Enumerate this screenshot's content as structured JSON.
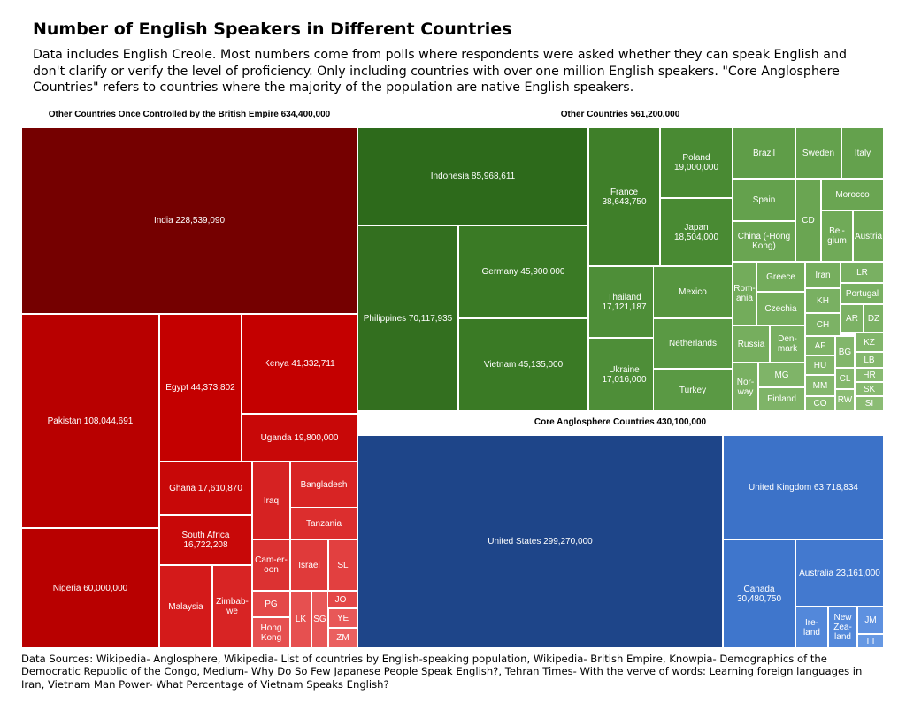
{
  "chart_data": {
    "type": "treemap",
    "title": "Number of English Speakers in Different Countries",
    "subtitle": "Data includes English Creole. Most numbers come from polls where respondents were asked whether they can speak English and don't clarify or verify the level of proficiency. Only including countries with over one million English speakers. \"Core Anglosphere Countries\" refers to countries where the majority of the population are native English speakers.",
    "sources": "Data Sources: Wikipedia- Anglosphere, Wikipedia- List of countries by English-speaking population, Wikipedia- British Empire, Knowpia- Demographics of the Democratic Republic of the Congo, Medium- Why Do So Few Japanese People Speak English?, Tehran Times- With the verve of words: Learning foreign languages in Iran, Vietnam Man Power- What Percentage of Vietnam Speaks English?",
    "groups": [
      {
        "name": "Other Countries Once Controlled by the British Empire 634,400,000",
        "items": [
          {
            "label": "India 228,539,090",
            "color": "#750000"
          },
          {
            "label": "Pakistan 108,044,691",
            "color": "#b80000"
          },
          {
            "label": "Nigeria 60,000,000",
            "color": "#b80000"
          },
          {
            "label": "Egypt 44,373,802",
            "color": "#c40000"
          },
          {
            "label": "Kenya 41,332,711",
            "color": "#c40000"
          },
          {
            "label": "Uganda 19,800,000",
            "color": "#c80808"
          },
          {
            "label": "Ghana 17,610,870",
            "color": "#c80808"
          },
          {
            "label": "South Africa\n16,722,208",
            "color": "#c80808"
          },
          {
            "label": "Malaysia",
            "color": "#d41a1a"
          },
          {
            "label": "Zimbab-\nwe",
            "color": "#d82424"
          },
          {
            "label": "Iraq",
            "color": "#d62222"
          },
          {
            "label": "Bangladesh",
            "color": "#d82424"
          },
          {
            "label": "Tanzania",
            "color": "#dc2e2e"
          },
          {
            "label": "Cameroon",
            "display": "Cam-er-\noon",
            "color": "#dc3232"
          },
          {
            "label": "Israel",
            "color": "#e03a3a"
          },
          {
            "label": "SL",
            "color": "#e24040"
          },
          {
            "label": "PG",
            "color": "#e44848"
          },
          {
            "label": "JO",
            "color": "#e44848"
          },
          {
            "label": "LK",
            "color": "#e65050"
          },
          {
            "label": "SG",
            "color": "#e85858"
          },
          {
            "label": "YE",
            "color": "#e85858"
          },
          {
            "label": "Hong Kong",
            "display": "Hong\nKong",
            "color": "#e65050"
          },
          {
            "label": "ZM",
            "color": "#ea6060"
          }
        ]
      },
      {
        "name": "Other Countries 561,200,000",
        "items": [
          {
            "label": "Indonesia 85,968,611",
            "color": "#2d6a1b"
          },
          {
            "label": "Philippines 70,117,935",
            "color": "#336f1f"
          },
          {
            "label": "Germany 45,900,000",
            "color": "#3a7a25"
          },
          {
            "label": "Vietnam 45,135,000",
            "color": "#3a7a25"
          },
          {
            "label": "France\n38,643,750",
            "color": "#3f7f29"
          },
          {
            "label": "Poland\n19,000,000",
            "color": "#498a33"
          },
          {
            "label": "Japan\n18,504,000",
            "color": "#498a33"
          },
          {
            "label": "Thailand\n17,121,187",
            "color": "#4e8e38"
          },
          {
            "label": "Ukraine\n17,016,000",
            "color": "#4e8e38"
          },
          {
            "label": "Mexico",
            "color": "#56953f"
          },
          {
            "label": "Netherlands",
            "color": "#5a9944"
          },
          {
            "label": "Turkey",
            "color": "#5a9944"
          },
          {
            "label": "Brazil",
            "color": "#5f9d48"
          },
          {
            "label": "Sweden",
            "color": "#64a14d"
          },
          {
            "label": "Italy",
            "color": "#64a14d"
          },
          {
            "label": "Spain",
            "color": "#64a14d"
          },
          {
            "label": "Morocco",
            "color": "#6aa552"
          },
          {
            "label": "CD",
            "color": "#6aa552"
          },
          {
            "label": "China (-Hong Kong)",
            "display": "China (-Hong\nKong)",
            "color": "#6aa552"
          },
          {
            "label": "Belgium",
            "display": "Bel-\ngium",
            "color": "#70aa58"
          },
          {
            "label": "Austria",
            "color": "#70aa58"
          },
          {
            "label": "Greece",
            "color": "#73ac5b"
          },
          {
            "label": "Iran",
            "color": "#76ae5e"
          },
          {
            "label": "LR",
            "color": "#79b062"
          },
          {
            "label": "Romania",
            "display": "Rom-\nania",
            "color": "#73ac5b"
          },
          {
            "label": "Czechia",
            "color": "#76ae5e"
          },
          {
            "label": "KH",
            "color": "#79b062"
          },
          {
            "label": "Portugal",
            "color": "#79b062"
          },
          {
            "label": "CH",
            "color": "#7cb265"
          },
          {
            "label": "AR",
            "color": "#7cb265"
          },
          {
            "label": "DZ",
            "color": "#7cb265"
          },
          {
            "label": "Russia",
            "color": "#76ae5e"
          },
          {
            "label": "Denmark",
            "display": "Den-\nmark",
            "color": "#79b062"
          },
          {
            "label": "AF",
            "color": "#7fb468"
          },
          {
            "label": "BG",
            "color": "#82b66b"
          },
          {
            "label": "KZ",
            "color": "#82b66b"
          },
          {
            "label": "HU",
            "color": "#82b66b"
          },
          {
            "label": "LB",
            "color": "#85b86e"
          },
          {
            "label": "Norway",
            "display": "Nor-\nway",
            "color": "#79b062"
          },
          {
            "label": "MG",
            "color": "#7fb468"
          },
          {
            "label": "MM",
            "color": "#85b86e"
          },
          {
            "label": "CL",
            "color": "#85b86e"
          },
          {
            "label": "HR",
            "color": "#88ba71"
          },
          {
            "label": "SK",
            "color": "#88ba71"
          },
          {
            "label": "Finland",
            "color": "#7fb468"
          },
          {
            "label": "CO",
            "color": "#88ba71"
          },
          {
            "label": "RW",
            "color": "#8bbc74"
          },
          {
            "label": "SI",
            "color": "#8bbc74"
          }
        ]
      },
      {
        "name": "Core Anglosphere Countries 430,100,000",
        "items": [
          {
            "label": "United States 299,270,000",
            "color": "#1e4589"
          },
          {
            "label": "United Kingdom 63,718,834",
            "color": "#3c72c8"
          },
          {
            "label": "Canada\n30,480,750",
            "color": "#3f76cc"
          },
          {
            "label": "Australia 23,161,000",
            "color": "#4379cf"
          },
          {
            "label": "Ireland",
            "display": "Ire-\nland",
            "color": "#5388da"
          },
          {
            "label": "New Zealand",
            "display": "New\nZea-\nland",
            "color": "#5388da"
          },
          {
            "label": "JM",
            "color": "#5e91e0"
          },
          {
            "label": "TT",
            "color": "#6698e3"
          }
        ]
      }
    ]
  }
}
